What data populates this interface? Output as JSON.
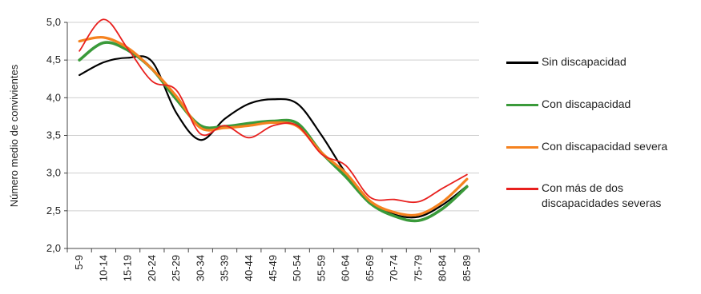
{
  "chart_data": {
    "type": "line",
    "title": "",
    "xlabel": "",
    "ylabel": "Número medio de convivientes",
    "categories": [
      "5-9",
      "10-14",
      "15-19",
      "20-24",
      "25-29",
      "30-34",
      "35-39",
      "40-44",
      "45-49",
      "50-54",
      "55-59",
      "60-64",
      "65-69",
      "70-74",
      "75-79",
      "80-84",
      "85-89"
    ],
    "ylim": [
      2.0,
      5.0
    ],
    "yticks": [
      "2,0",
      "2,5",
      "3,0",
      "3,5",
      "4,0",
      "4,5",
      "5,0"
    ],
    "yticks_values": [
      2.0,
      2.5,
      3.0,
      3.5,
      4.0,
      4.5,
      5.0
    ],
    "grid": true,
    "legend_position": "right",
    "series": [
      {
        "name": "Sin discapacidad",
        "color": "#000000",
        "values": [
          4.3,
          4.47,
          4.53,
          4.48,
          3.8,
          3.44,
          3.72,
          3.92,
          3.98,
          3.92,
          3.5,
          3.0,
          2.62,
          2.45,
          2.42,
          2.58,
          2.83
        ]
      },
      {
        "name": "Con discapacidad",
        "color": "#3a9a3a",
        "values": [
          4.5,
          4.73,
          4.63,
          4.38,
          3.98,
          3.63,
          3.62,
          3.66,
          3.69,
          3.66,
          3.27,
          2.95,
          2.6,
          2.43,
          2.37,
          2.53,
          2.82
        ]
      },
      {
        "name": "Con discapacidad severa",
        "color": "#f5821f",
        "values": [
          4.75,
          4.8,
          4.66,
          4.38,
          4.02,
          3.6,
          3.6,
          3.63,
          3.67,
          3.62,
          3.27,
          3.0,
          2.63,
          2.48,
          2.45,
          2.62,
          2.92
        ]
      },
      {
        "name": "Con más de dos\ndiscapacidades severas",
        "color": "#e8201e",
        "values": [
          4.62,
          5.04,
          4.65,
          4.22,
          4.1,
          3.52,
          3.63,
          3.47,
          3.63,
          3.63,
          3.25,
          3.1,
          2.68,
          2.65,
          2.62,
          2.8,
          2.98
        ]
      }
    ]
  }
}
